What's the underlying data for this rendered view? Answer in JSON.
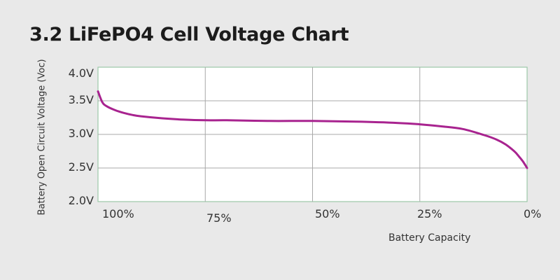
{
  "title": "3.2 LiFePO4 Cell Voltage Chart",
  "chart_data": {
    "type": "line",
    "title": "3.2 LiFePO4 Cell Voltage Chart",
    "xlabel": "Battery Capacity",
    "ylabel": "Battery Open Circuit Voltage (Voc)",
    "x_tick_labels": [
      "100%",
      "75%",
      "50%",
      "25%",
      "0%"
    ],
    "y_tick_labels": [
      "4.0V",
      "3.5V",
      "3.0V",
      "2.5V",
      "2.0V"
    ],
    "xlim": [
      100,
      0
    ],
    "ylim": [
      2.0,
      4.0
    ],
    "grid": true,
    "legend": "none",
    "series": [
      {
        "name": "Open Circuit Voltage",
        "color": "#a8238f",
        "x": [
          100,
          99,
          98,
          96,
          94,
          92,
          90,
          85,
          80,
          75,
          70,
          60,
          50,
          40,
          30,
          25,
          20,
          15,
          10,
          7,
          5,
          3,
          2,
          1,
          0
        ],
        "y": [
          3.64,
          3.48,
          3.42,
          3.36,
          3.32,
          3.29,
          3.27,
          3.24,
          3.22,
          3.21,
          3.21,
          3.2,
          3.2,
          3.19,
          3.17,
          3.15,
          3.12,
          3.08,
          2.99,
          2.92,
          2.85,
          2.75,
          2.68,
          2.6,
          2.5
        ]
      }
    ]
  },
  "colors": {
    "background": "#e9e9e9",
    "plot_background": "#ffffff",
    "plot_border": "#9cc8a8",
    "grid": "#a8a8a8",
    "line": "#a8238f"
  }
}
